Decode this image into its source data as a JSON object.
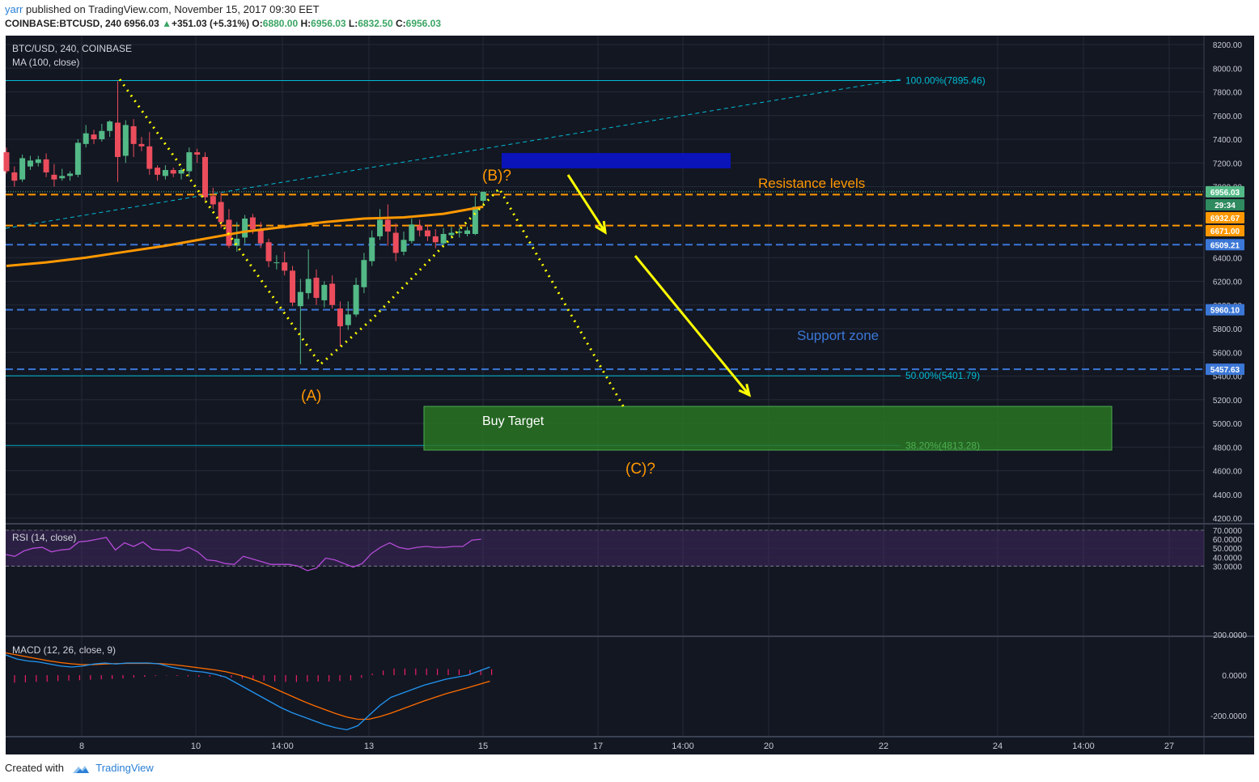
{
  "header": {
    "user": "yarr",
    "published": " published on TradingView.com, November 15, 2017 09:30 EET",
    "symbol_line": "COINBASE:BTCUSD, 240",
    "last": "6956.03",
    "change": "+351.03 (+5.31%)",
    "o_label": "O:",
    "o": "6880.00",
    "h_label": "H:",
    "h": "6956.03",
    "l_label": "L:",
    "l": "6832.50",
    "c_label": "C:",
    "c": "6956.03"
  },
  "footer": {
    "created_with": "Created with",
    "brand": "TradingView"
  },
  "colors": {
    "background": "#131722",
    "bull": "#53b987",
    "bear": "#eb4d5c",
    "ma": "#ff9800",
    "fib": "#00bcd4",
    "rsi": "#b34bd6",
    "macd": "#2196f3",
    "signal": "#ff6d00",
    "hist": "#e91e63",
    "annotation": "#ffff00",
    "label_orange": "#ff9800",
    "support": "#3b77d6",
    "buy_zone": "#2a7a23"
  },
  "chart_data": [
    {
      "type": "candlestick",
      "title": "BTC/USD, 240, COINBASE",
      "indicator": "MA (100, close)",
      "ylim": [
        4100,
        8300
      ],
      "y_ticks": [
        "8200.00",
        "8000.00",
        "7800.00",
        "7600.00",
        "7400.00",
        "7200.00",
        "7000.00",
        "6400.00",
        "6200.00",
        "6000.00",
        "5800.00",
        "5600.00",
        "5400.00",
        "5200.00",
        "5000.00",
        "4800.00",
        "4600.00",
        "4400.00",
        "4200.00"
      ],
      "x_ticks": [
        "8",
        "10",
        "14:00",
        "13",
        "15",
        "17",
        "14:00",
        "20",
        "22",
        "24",
        "14:00",
        "27"
      ],
      "candles": [
        [
          7290,
          7130,
          7330,
          7110
        ],
        [
          7120,
          7050,
          7170,
          7000
        ],
        [
          7060,
          7240,
          7270,
          7040
        ],
        [
          7170,
          7220,
          7260,
          7140
        ],
        [
          7200,
          7230,
          7260,
          7170
        ],
        [
          7230,
          7120,
          7280,
          7080
        ],
        [
          7100,
          7060,
          7190,
          7000
        ],
        [
          7070,
          7090,
          7150,
          7050
        ],
        [
          7090,
          7110,
          7130,
          7050
        ],
        [
          7100,
          7370,
          7400,
          7080
        ],
        [
          7360,
          7450,
          7520,
          7330
        ],
        [
          7440,
          7400,
          7480,
          7360
        ],
        [
          7400,
          7470,
          7530,
          7380
        ],
        [
          7470,
          7550,
          7560,
          7420
        ],
        [
          7540,
          7250,
          7890,
          7040
        ],
        [
          7260,
          7520,
          7560,
          7200
        ],
        [
          7510,
          7360,
          7570,
          7250
        ],
        [
          7360,
          7340,
          7420,
          7300
        ],
        [
          7340,
          7150,
          7460,
          7100
        ],
        [
          7160,
          7100,
          7180,
          7050
        ],
        [
          7090,
          7140,
          7180,
          7060
        ],
        [
          7140,
          7110,
          7160,
          7080
        ],
        [
          7110,
          7140,
          7160,
          7060
        ],
        [
          7130,
          7290,
          7330,
          7080
        ],
        [
          7290,
          7270,
          7320,
          7200
        ],
        [
          7250,
          6910,
          7290,
          6880
        ],
        [
          6920,
          6850,
          6990,
          6810
        ],
        [
          6870,
          6700,
          6950,
          6650
        ],
        [
          6720,
          6500,
          6810,
          6480
        ],
        [
          6500,
          6560,
          6700,
          6450
        ],
        [
          6570,
          6730,
          6760,
          6520
        ],
        [
          6740,
          6640,
          6770,
          6600
        ],
        [
          6640,
          6520,
          6700,
          6480
        ],
        [
          6530,
          6370,
          6560,
          6320
        ],
        [
          6360,
          6360,
          6420,
          6300
        ],
        [
          6360,
          6290,
          6450,
          6250
        ],
        [
          6290,
          6020,
          6330,
          5990
        ],
        [
          5990,
          6110,
          6220,
          5500
        ],
        [
          6100,
          6220,
          6470,
          6050
        ],
        [
          6230,
          6060,
          6300,
          6000
        ],
        [
          6040,
          6170,
          6200,
          5980
        ],
        [
          6180,
          6000,
          6250,
          5970
        ],
        [
          5970,
          5820,
          6030,
          5650
        ],
        [
          5830,
          5920,
          6030,
          5790
        ],
        [
          5920,
          6170,
          6230,
          5900
        ],
        [
          6150,
          6380,
          6440,
          6100
        ],
        [
          6370,
          6570,
          6630,
          6330
        ],
        [
          6580,
          6720,
          6810,
          6550
        ],
        [
          6720,
          6620,
          6850,
          6500
        ],
        [
          6610,
          6440,
          6690,
          6370
        ],
        [
          6450,
          6550,
          6620,
          6420
        ],
        [
          6540,
          6680,
          6730,
          6520
        ],
        [
          6670,
          6630,
          6720,
          6580
        ],
        [
          6630,
          6580,
          6680,
          6540
        ],
        [
          6580,
          6530,
          6640,
          6480
        ],
        [
          6520,
          6600,
          6650,
          6500
        ],
        [
          6590,
          6610,
          6660,
          6560
        ],
        [
          6610,
          6620,
          6650,
          6570
        ],
        [
          6600,
          6630,
          6660,
          6580
        ],
        [
          6600,
          6830,
          6920,
          6590
        ],
        [
          6880,
          6956,
          6956,
          6832
        ]
      ],
      "ma100": [
        [
          0,
          6330
        ],
        [
          5,
          6360
        ],
        [
          10,
          6400
        ],
        [
          15,
          6450
        ],
        [
          20,
          6500
        ],
        [
          25,
          6560
        ],
        [
          30,
          6620
        ],
        [
          35,
          6660
        ],
        [
          40,
          6700
        ],
        [
          45,
          6730
        ],
        [
          50,
          6740
        ],
        [
          55,
          6770
        ],
        [
          60,
          6830
        ]
      ],
      "last_price": "6956.03",
      "countdown": "29:34",
      "ma_value": "6932.67",
      "price_labels": [
        {
          "value": 6956.03,
          "text": "6956.03",
          "color": "#53b987"
        },
        {
          "value": 6932.67,
          "text": "6932.67",
          "color": "#ff9800"
        },
        {
          "value": 6671.0,
          "text": "6671.00",
          "color": "#ff9800"
        },
        {
          "value": 6509.21,
          "text": "6509.21",
          "color": "#3b77d6"
        },
        {
          "value": 5960.1,
          "text": "5960.10",
          "color": "#3b77d6"
        },
        {
          "value": 5457.63,
          "text": "5457.63",
          "color": "#3b77d6"
        }
      ],
      "fib_levels": [
        {
          "value": 7895.46,
          "text": "100.00%(7895.46)"
        },
        {
          "value": 5401.79,
          "text": "50.00%(5401.79)"
        },
        {
          "value": 4813.28,
          "text": "38.20%(4813.28)"
        }
      ],
      "annotations": {
        "wave_a": "(A)",
        "wave_b": "(B)?",
        "wave_c": "(C)?",
        "resistance": "Resistance levels",
        "support": "Support zone",
        "buy_target": "Buy Target"
      }
    },
    {
      "type": "line",
      "title": "RSI (14, close)",
      "ylim": [
        22,
        74
      ],
      "y_ticks": [
        "70.0000",
        "60.0000",
        "50.0000",
        "40.0000",
        "30.0000"
      ],
      "bands": [
        30,
        70
      ],
      "values": [
        43,
        41,
        47,
        50,
        51,
        46,
        48,
        49,
        57,
        58,
        60,
        62,
        48,
        56,
        52,
        57,
        49,
        48,
        48,
        47,
        51,
        46,
        37,
        36,
        33,
        32,
        41,
        38,
        35,
        32,
        32,
        32,
        30,
        25,
        28,
        39,
        37,
        33,
        29,
        33,
        44,
        51,
        56,
        51,
        49,
        51,
        52,
        51,
        51,
        52,
        52,
        59,
        60
      ]
    },
    {
      "type": "line",
      "title": "MACD (12, 26, close, 9)",
      "ylim": [
        -330,
        230
      ],
      "y_ticks": [
        "200.0000",
        "0.0000",
        "-200.0000"
      ],
      "macd": [
        100,
        80,
        70,
        65,
        55,
        45,
        40,
        45,
        55,
        60,
        55,
        60,
        60,
        60,
        55,
        40,
        30,
        20,
        15,
        5,
        -10,
        -40,
        -70,
        -100,
        -130,
        -160,
        -185,
        -205,
        -225,
        -245,
        -260,
        -270,
        -250,
        -200,
        -150,
        -110,
        -90,
        -70,
        -50,
        -35,
        -20,
        -10,
        0,
        20,
        40
      ],
      "signal": [
        110,
        100,
        90,
        80,
        70,
        62,
        56,
        52,
        52,
        55,
        57,
        58,
        58,
        58,
        57,
        53,
        47,
        40,
        33,
        26,
        17,
        4,
        -12,
        -32,
        -55,
        -80,
        -104,
        -128,
        -150,
        -170,
        -190,
        -207,
        -218,
        -218,
        -205,
        -188,
        -168,
        -148,
        -128,
        -110,
        -92,
        -77,
        -62,
        -46,
        -30
      ],
      "hist": [
        -90,
        -85,
        -80,
        -78,
        -70,
        -65,
        -60,
        -55,
        -50,
        -45,
        -40,
        -30,
        -20,
        -10,
        -5,
        -10,
        -15,
        -20,
        -18,
        -20,
        -27,
        -44,
        -58,
        -68,
        -75,
        -80,
        -81,
        -77,
        -75,
        -75,
        -70,
        -63,
        -32,
        18,
        55,
        78,
        78,
        78,
        78,
        75,
        72,
        67,
        62,
        66,
        70
      ]
    }
  ]
}
